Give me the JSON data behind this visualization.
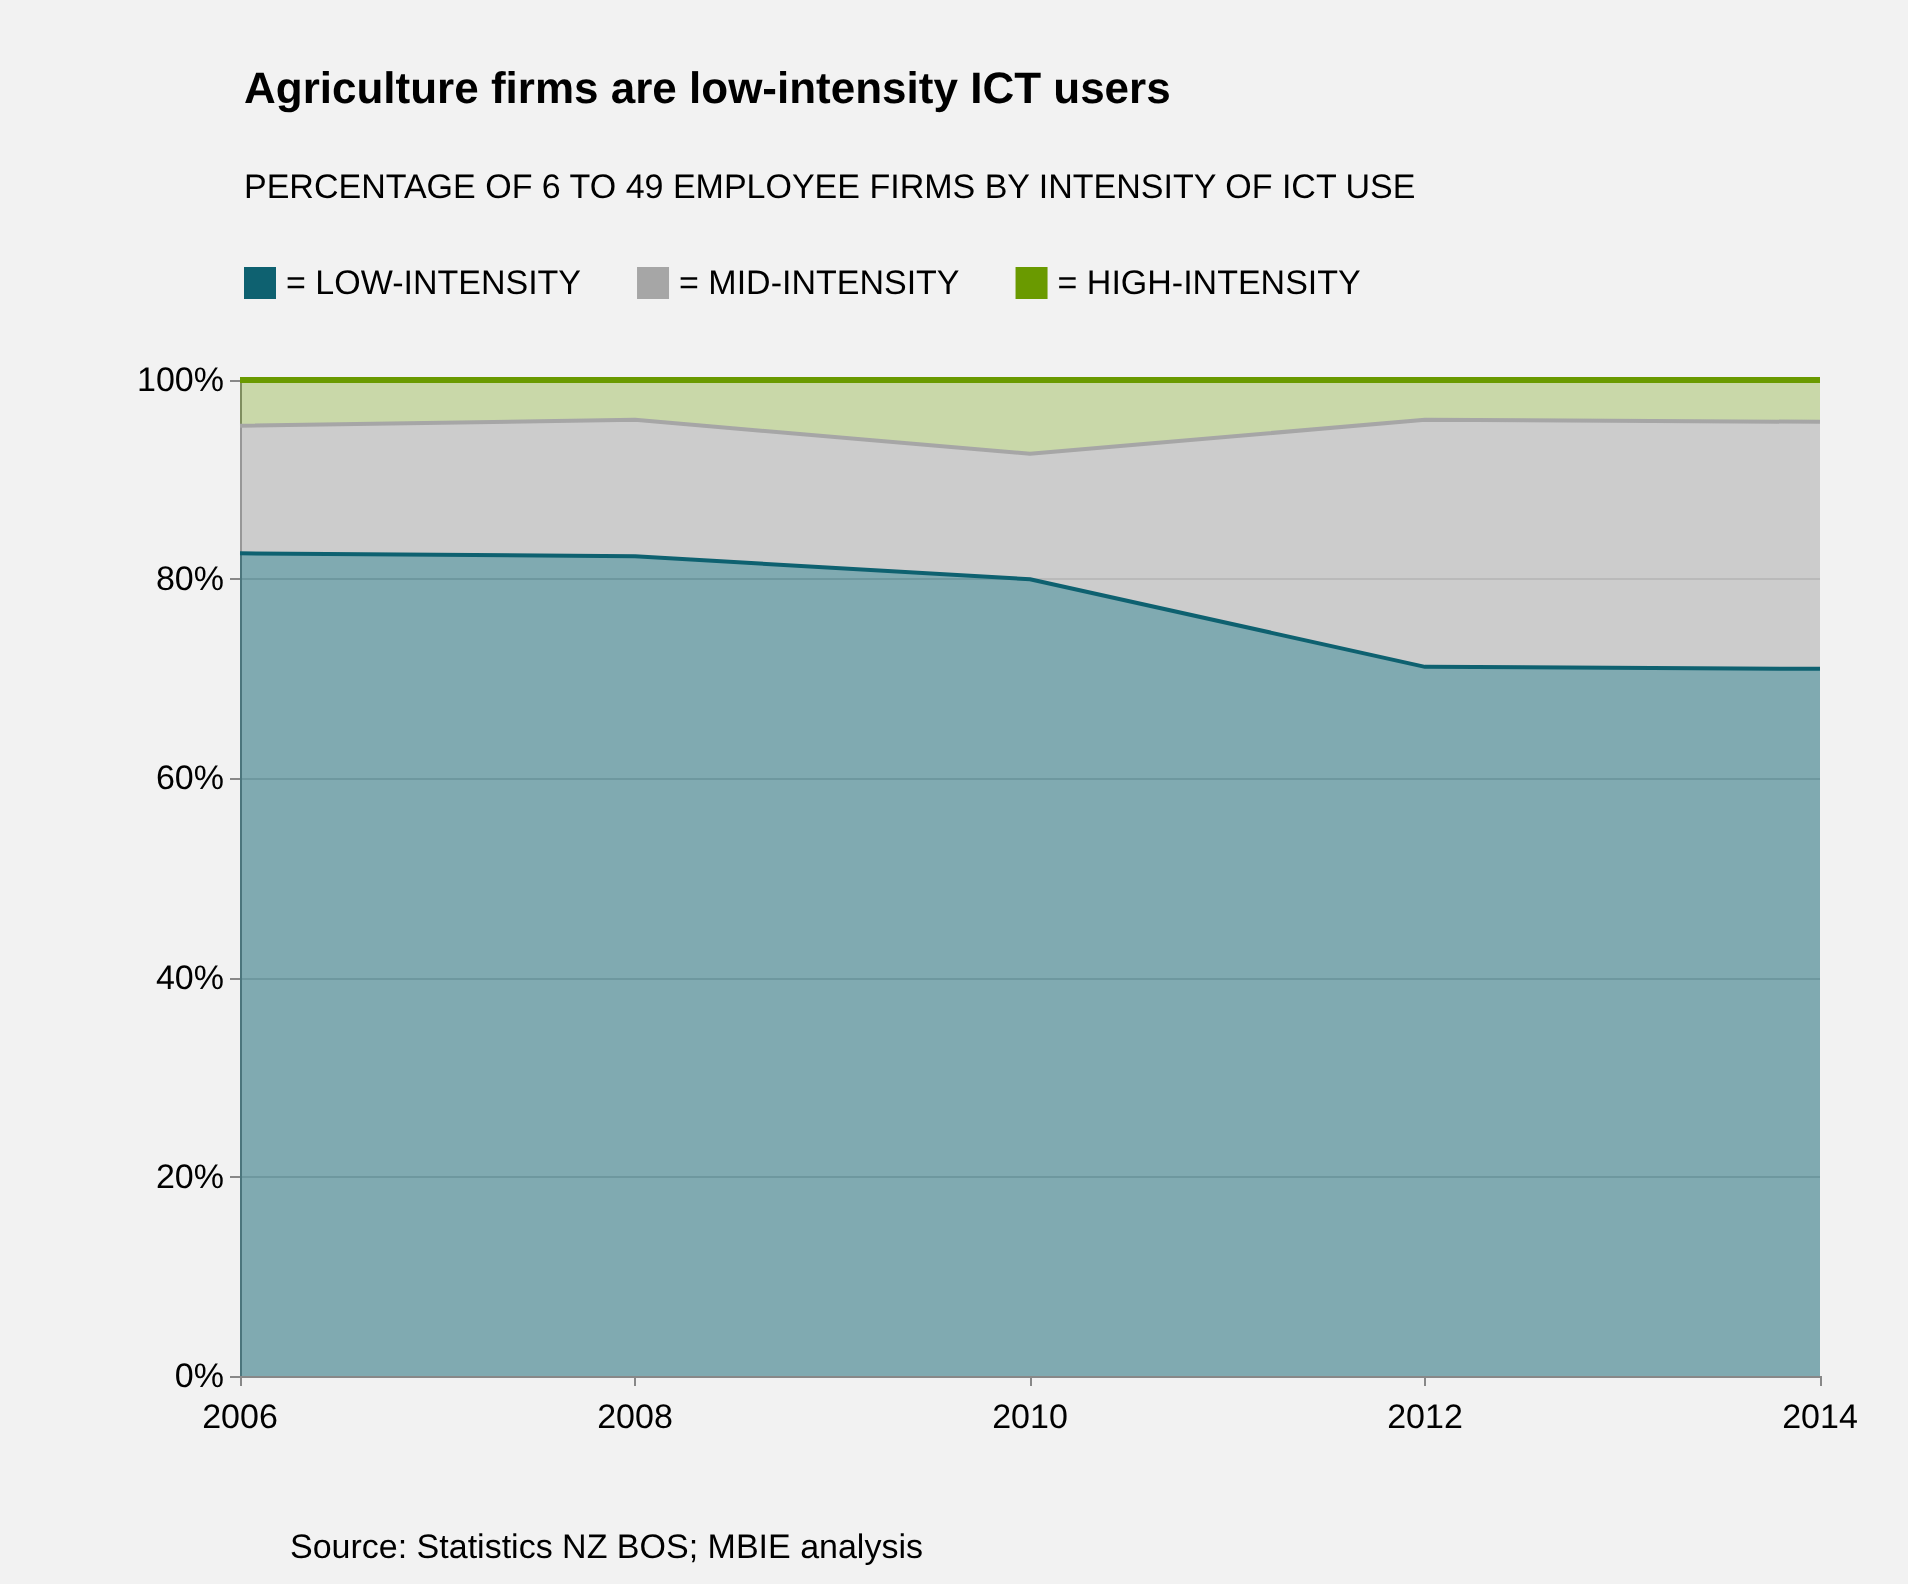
{
  "chart_data": {
    "type": "area",
    "stacked": true,
    "title": "Agriculture firms are low-intensity ICT users",
    "subtitle": "PERCENTAGE OF 6 TO 49 EMPLOYEE FIRMS BY INTENSITY OF ICT USE",
    "annotations": [
      "Source: Statistics NZ BOS; MBIE analysis"
    ],
    "x": [
      2006,
      2008,
      2010,
      2012,
      2014
    ],
    "series": [
      {
        "name": "= LOW-INTENSITY",
        "color": "#0e6170",
        "values": [
          82.6,
          82.3,
          80,
          71.2,
          71
        ]
      },
      {
        "name": "= MID-INTENSITY",
        "color": "#a6a6a6",
        "values": [
          12.8,
          13.7,
          12.6,
          24.8,
          24.8
        ]
      },
      {
        "name": "= HIGH-INTENSITY",
        "color": "#6a9a00",
        "values": [
          4.6,
          4,
          7.4,
          4,
          4.2
        ]
      }
    ],
    "xlim": [
      2006,
      2014
    ],
    "xticks": [
      2006,
      2008,
      2010,
      2012,
      2014
    ],
    "ylim": [
      0,
      100
    ],
    "yticks": [
      {
        "value": 0,
        "label": "0%"
      },
      {
        "value": 20,
        "label": "20%"
      },
      {
        "value": 40,
        "label": "40%"
      },
      {
        "value": 60,
        "label": "60%"
      },
      {
        "value": 80,
        "label": "80%"
      },
      {
        "value": 100,
        "label": "100%"
      }
    ],
    "grid": "y",
    "legend": "top left",
    "marker": "none"
  }
}
